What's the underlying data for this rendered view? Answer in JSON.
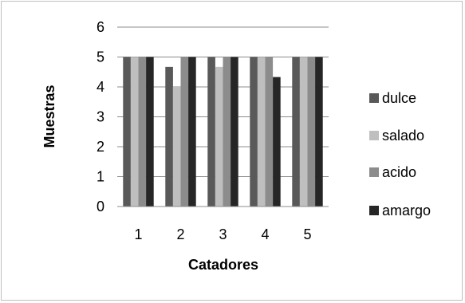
{
  "chart_data": {
    "type": "bar",
    "title": "",
    "xlabel": "Catadores",
    "ylabel": "Muestras",
    "categories": [
      "1",
      "2",
      "3",
      "4",
      "5"
    ],
    "ylim": [
      0,
      6
    ],
    "yticks": [
      0,
      1,
      2,
      3,
      4,
      5,
      6
    ],
    "grid": true,
    "legend_position": "right",
    "series": [
      {
        "name": "dulce",
        "color": "#595959",
        "values": [
          5,
          4.67,
          5,
          5,
          5
        ]
      },
      {
        "name": "salado",
        "color": "#bfbfbf",
        "values": [
          5,
          4,
          4.67,
          5,
          5
        ]
      },
      {
        "name": "acido",
        "color": "#8c8c8c",
        "values": [
          5,
          5,
          5,
          5,
          5
        ]
      },
      {
        "name": "amargo",
        "color": "#262626",
        "values": [
          5,
          5,
          5,
          4.33,
          5
        ]
      }
    ]
  }
}
